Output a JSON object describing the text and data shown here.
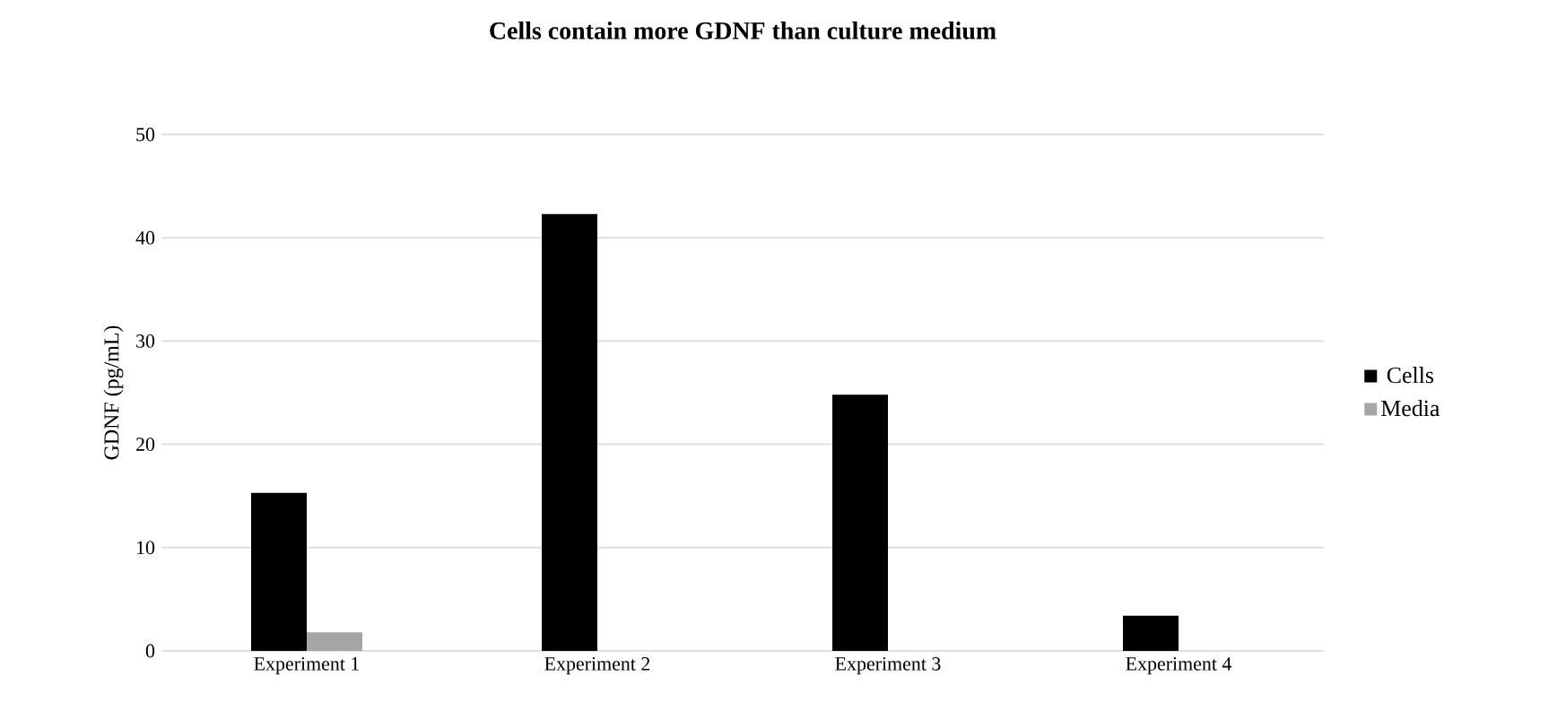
{
  "chart_data": {
    "type": "bar",
    "title": "Cells contain more GDNF than culture medium",
    "ylabel": "GDNF (pg/mL)",
    "categories": [
      "Experiment 1",
      "Experiment 2",
      "Experiment 3",
      "Experiment 4"
    ],
    "series": [
      {
        "name": "Cells",
        "color": "#000000",
        "values": [
          15.3,
          42.3,
          24.8,
          3.4
        ]
      },
      {
        "name": "Media",
        "color": "#a6a6a6",
        "values": [
          1.8,
          null,
          null,
          null
        ]
      }
    ],
    "ylim": [
      0,
      50
    ],
    "yticks": [
      0,
      10,
      20,
      30,
      40,
      50
    ],
    "grid": "y",
    "legend": "right"
  }
}
